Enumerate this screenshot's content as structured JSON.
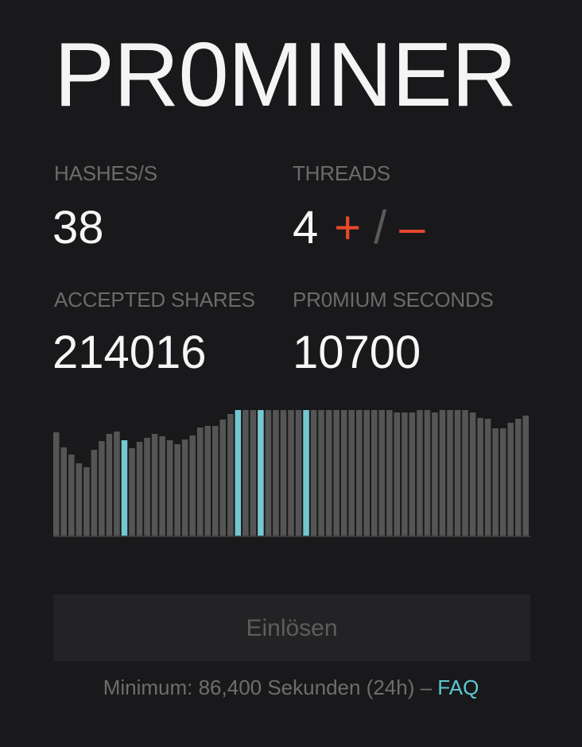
{
  "app": {
    "title": "PR0MINER"
  },
  "stats": {
    "hashes": {
      "label": "HASHES/S",
      "value": "38"
    },
    "threads": {
      "label": "THREADS",
      "value": "4",
      "plus": "+",
      "separator": "/",
      "minus": "–"
    },
    "accepted": {
      "label": "ACCEPTED SHARES",
      "value": "214016"
    },
    "promium": {
      "label": "PR0MIUM SECONDS",
      "value": "10700"
    }
  },
  "chart_data": {
    "type": "bar",
    "values": [
      130,
      111,
      102,
      91,
      86,
      108,
      119,
      128,
      131,
      120,
      110,
      118,
      123,
      128,
      125,
      120,
      115,
      121,
      126,
      136,
      138,
      138,
      146,
      153,
      158,
      158,
      158,
      158,
      158,
      158,
      158,
      158,
      158,
      158,
      158,
      158,
      158,
      158,
      158,
      158,
      158,
      158,
      158,
      158,
      158,
      155,
      155,
      155,
      158,
      158,
      155,
      158,
      158,
      158,
      158,
      155,
      148,
      147,
      135,
      135,
      142,
      147,
      151
    ],
    "highlighted_indices": [
      9,
      24,
      27,
      33
    ],
    "ylim": [
      0,
      160
    ],
    "colors": {
      "bar": "#555555",
      "highlight": "#74c8cf"
    }
  },
  "redeem": {
    "label": "Einlösen"
  },
  "footer": {
    "text": "Minimum: 86,400 Sekunden (24h) – ",
    "faq": "FAQ"
  },
  "colors": {
    "background": "#19191b",
    "accent": "#e8482c",
    "link": "#5ec8d2"
  }
}
